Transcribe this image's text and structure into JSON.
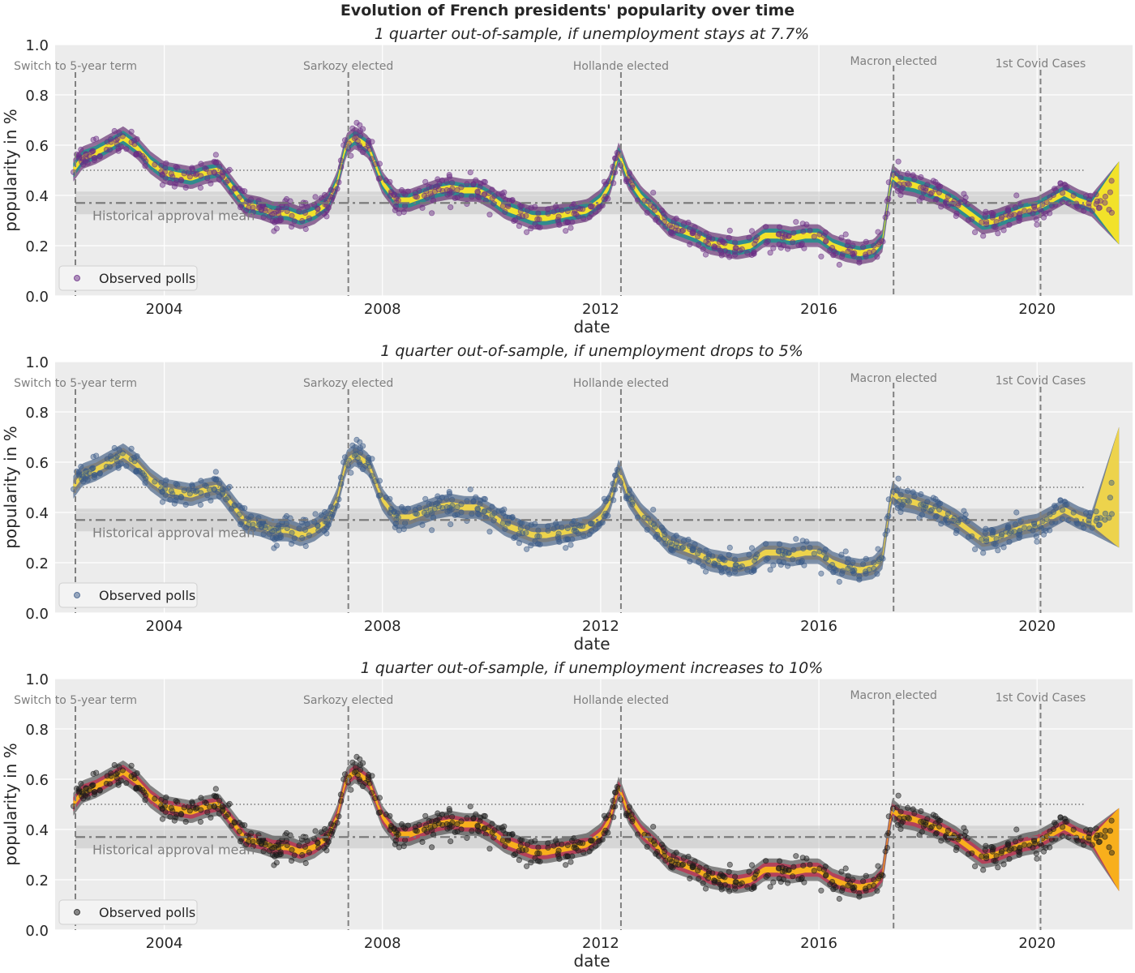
{
  "figure": {
    "suptitle": "Evolution of French presidents' popularity over time"
  },
  "chart_data": [
    {
      "type": "line",
      "title": "1 quarter out-of-sample, if unemployment stays at 7.7%",
      "xlabel": "date",
      "ylabel": "popularity in %",
      "xlim": [
        "2002-01-01",
        "2021-10-01"
      ],
      "ylim": [
        0,
        1
      ],
      "x_ticks": [
        "2004",
        "2008",
        "2012",
        "2016",
        "2020"
      ],
      "y_ticks": [
        "0.0",
        "0.2",
        "0.4",
        "0.6",
        "0.8",
        "1.0"
      ],
      "grid": true,
      "legend": {
        "position": "lower-left",
        "entries": [
          "Observed polls"
        ]
      },
      "colormap": "viridis",
      "poll_color": "#6a2c85",
      "band_outer_color": "#440154",
      "band_mid_color": "#21918c",
      "band_inner_color": "#fde725",
      "forecast_end": {
        "mean": 0.37,
        "low": 0.21,
        "high": 0.54
      },
      "annotations": [
        {
          "label": "Switch to 5-year term",
          "date": "2002-05-15"
        },
        {
          "label": "Sarkozy elected",
          "date": "2007-05-16"
        },
        {
          "label": "Hollande elected",
          "date": "2012-05-15"
        },
        {
          "label": "Macron elected",
          "date": "2017-05-14"
        },
        {
          "label": "1st Covid Cases",
          "date": "2020-01-24"
        }
      ],
      "reference_lines": {
        "fifty_percent": 0.5,
        "historical_mean": 0.37,
        "historical_band": [
          0.325,
          0.415
        ],
        "historical_label": "Historical approval mean"
      },
      "series": [
        {
          "x": [
            "2002-05",
            "2002-07",
            "2002-10",
            "2003-01",
            "2003-04",
            "2003-07",
            "2003-10",
            "2004-01",
            "2004-04",
            "2004-07",
            "2004-10",
            "2005-01",
            "2005-04",
            "2005-07",
            "2005-10",
            "2006-01",
            "2006-04",
            "2006-07",
            "2006-10",
            "2007-01",
            "2007-03",
            "2007-05",
            "2007-07",
            "2007-10",
            "2008-01",
            "2008-04",
            "2008-07",
            "2008-10",
            "2009-01",
            "2009-04",
            "2009-07",
            "2009-10",
            "2010-01",
            "2010-04",
            "2010-07",
            "2010-10",
            "2011-01",
            "2011-04",
            "2011-07",
            "2011-10",
            "2012-01",
            "2012-03",
            "2012-05",
            "2012-07",
            "2012-10",
            "2013-01",
            "2013-04",
            "2013-07",
            "2013-10",
            "2014-01",
            "2014-04",
            "2014-07",
            "2014-10",
            "2015-01",
            "2015-04",
            "2015-07",
            "2015-10",
            "2016-01",
            "2016-04",
            "2016-07",
            "2016-10",
            "2017-01",
            "2017-03",
            "2017-05",
            "2017-07",
            "2017-10",
            "2018-01",
            "2018-04",
            "2018-07",
            "2018-10",
            "2019-01",
            "2019-04",
            "2019-07",
            "2019-10",
            "2020-01",
            "2020-04",
            "2020-07",
            "2020-10",
            "2021-01",
            "2021-04",
            "2021-07"
          ],
          "y": [
            0.5,
            0.55,
            0.57,
            0.6,
            0.63,
            0.59,
            0.53,
            0.49,
            0.48,
            0.47,
            0.49,
            0.5,
            0.43,
            0.36,
            0.35,
            0.33,
            0.33,
            0.31,
            0.33,
            0.37,
            0.45,
            0.6,
            0.63,
            0.59,
            0.45,
            0.38,
            0.38,
            0.4,
            0.42,
            0.43,
            0.42,
            0.42,
            0.39,
            0.35,
            0.33,
            0.31,
            0.31,
            0.32,
            0.33,
            0.34,
            0.38,
            0.44,
            0.57,
            0.47,
            0.39,
            0.34,
            0.28,
            0.26,
            0.24,
            0.21,
            0.2,
            0.19,
            0.2,
            0.24,
            0.24,
            0.23,
            0.24,
            0.24,
            0.2,
            0.18,
            0.17,
            0.18,
            0.22,
            0.48,
            0.45,
            0.44,
            0.42,
            0.4,
            0.37,
            0.33,
            0.29,
            0.3,
            0.32,
            0.34,
            0.35,
            0.38,
            0.41,
            0.38,
            0.36,
            0.39,
            0.37
          ]
        }
      ]
    },
    {
      "type": "line",
      "title": "1 quarter out-of-sample, if unemployment drops to 5%",
      "xlabel": "date",
      "ylabel": "popularity in %",
      "xlim": [
        "2002-01-01",
        "2021-10-01"
      ],
      "ylim": [
        0,
        1
      ],
      "x_ticks": [
        "2004",
        "2008",
        "2012",
        "2016",
        "2020"
      ],
      "y_ticks": [
        "0.0",
        "0.2",
        "0.4",
        "0.6",
        "0.8",
        "1.0"
      ],
      "grid": true,
      "legend": {
        "position": "lower-left",
        "entries": [
          "Observed polls"
        ]
      },
      "colormap": "cividis",
      "poll_color": "#3a5a88",
      "band_outer_color": "#1d3f6e",
      "band_mid_color": "#7d7c78",
      "band_inner_color": "#f3d84a",
      "forecast_end": {
        "mean": 0.5,
        "low": 0.25,
        "high": 0.73
      },
      "annotations": [
        {
          "label": "Switch to 5-year term",
          "date": "2002-05-15"
        },
        {
          "label": "Sarkozy elected",
          "date": "2007-05-16"
        },
        {
          "label": "Hollande elected",
          "date": "2012-05-15"
        },
        {
          "label": "Macron elected",
          "date": "2017-05-14"
        },
        {
          "label": "1st Covid Cases",
          "date": "2020-01-24"
        }
      ],
      "reference_lines": {
        "fifty_percent": 0.5,
        "historical_mean": 0.37,
        "historical_band": [
          0.325,
          0.415
        ],
        "historical_label": "Historical approval mean"
      },
      "series": [
        {
          "x": [
            "2002-05",
            "2002-07",
            "2002-10",
            "2003-01",
            "2003-04",
            "2003-07",
            "2003-10",
            "2004-01",
            "2004-04",
            "2004-07",
            "2004-10",
            "2005-01",
            "2005-04",
            "2005-07",
            "2005-10",
            "2006-01",
            "2006-04",
            "2006-07",
            "2006-10",
            "2007-01",
            "2007-03",
            "2007-05",
            "2007-07",
            "2007-10",
            "2008-01",
            "2008-04",
            "2008-07",
            "2008-10",
            "2009-01",
            "2009-04",
            "2009-07",
            "2009-10",
            "2010-01",
            "2010-04",
            "2010-07",
            "2010-10",
            "2011-01",
            "2011-04",
            "2011-07",
            "2011-10",
            "2012-01",
            "2012-03",
            "2012-05",
            "2012-07",
            "2012-10",
            "2013-01",
            "2013-04",
            "2013-07",
            "2013-10",
            "2014-01",
            "2014-04",
            "2014-07",
            "2014-10",
            "2015-01",
            "2015-04",
            "2015-07",
            "2015-10",
            "2016-01",
            "2016-04",
            "2016-07",
            "2016-10",
            "2017-01",
            "2017-03",
            "2017-05",
            "2017-07",
            "2017-10",
            "2018-01",
            "2018-04",
            "2018-07",
            "2018-10",
            "2019-01",
            "2019-04",
            "2019-07",
            "2019-10",
            "2020-01",
            "2020-04",
            "2020-07",
            "2020-10",
            "2021-01",
            "2021-04",
            "2021-07"
          ],
          "y": [
            0.5,
            0.55,
            0.57,
            0.6,
            0.63,
            0.59,
            0.53,
            0.49,
            0.48,
            0.47,
            0.49,
            0.5,
            0.43,
            0.36,
            0.35,
            0.33,
            0.33,
            0.31,
            0.33,
            0.37,
            0.45,
            0.6,
            0.63,
            0.59,
            0.45,
            0.38,
            0.38,
            0.4,
            0.42,
            0.43,
            0.42,
            0.42,
            0.39,
            0.35,
            0.33,
            0.31,
            0.31,
            0.32,
            0.33,
            0.34,
            0.38,
            0.44,
            0.57,
            0.47,
            0.39,
            0.34,
            0.28,
            0.26,
            0.24,
            0.21,
            0.2,
            0.19,
            0.2,
            0.24,
            0.24,
            0.23,
            0.24,
            0.24,
            0.2,
            0.18,
            0.17,
            0.18,
            0.22,
            0.48,
            0.45,
            0.44,
            0.42,
            0.4,
            0.37,
            0.33,
            0.29,
            0.3,
            0.32,
            0.34,
            0.35,
            0.38,
            0.41,
            0.38,
            0.36,
            0.39,
            0.5
          ]
        }
      ]
    },
    {
      "type": "line",
      "title": "1 quarter out-of-sample, if unemployment increases to 10%",
      "xlabel": "date",
      "ylabel": "popularity in %",
      "xlim": [
        "2002-01-01",
        "2021-10-01"
      ],
      "ylim": [
        0,
        1
      ],
      "x_ticks": [
        "2004",
        "2008",
        "2012",
        "2016",
        "2020"
      ],
      "y_ticks": [
        "0.0",
        "0.2",
        "0.4",
        "0.6",
        "0.8",
        "1.0"
      ],
      "grid": true,
      "legend": {
        "position": "lower-left",
        "entries": [
          "Observed polls"
        ]
      },
      "colormap": "inferno",
      "poll_color": "#1a1a1a",
      "band_outer_color": "#2b2b2b",
      "band_mid_color": "#bc3754",
      "band_inner_color": "#fcb519",
      "forecast_end": {
        "mean": 0.32,
        "low": 0.17,
        "high": 0.5
      },
      "annotations": [
        {
          "label": "Switch to 5-year term",
          "date": "2002-05-15"
        },
        {
          "label": "Sarkozy elected",
          "date": "2007-05-16"
        },
        {
          "label": "Hollande elected",
          "date": "2012-05-15"
        },
        {
          "label": "Macron elected",
          "date": "2017-05-14"
        },
        {
          "label": "1st Covid Cases",
          "date": "2020-01-24"
        }
      ],
      "reference_lines": {
        "fifty_percent": 0.5,
        "historical_mean": 0.37,
        "historical_band": [
          0.325,
          0.415
        ],
        "historical_label": "Historical approval mean"
      },
      "series": [
        {
          "x": [
            "2002-05",
            "2002-07",
            "2002-10",
            "2003-01",
            "2003-04",
            "2003-07",
            "2003-10",
            "2004-01",
            "2004-04",
            "2004-07",
            "2004-10",
            "2005-01",
            "2005-04",
            "2005-07",
            "2005-10",
            "2006-01",
            "2006-04",
            "2006-07",
            "2006-10",
            "2007-01",
            "2007-03",
            "2007-05",
            "2007-07",
            "2007-10",
            "2008-01",
            "2008-04",
            "2008-07",
            "2008-10",
            "2009-01",
            "2009-04",
            "2009-07",
            "2009-10",
            "2010-01",
            "2010-04",
            "2010-07",
            "2010-10",
            "2011-01",
            "2011-04",
            "2011-07",
            "2011-10",
            "2012-01",
            "2012-03",
            "2012-05",
            "2012-07",
            "2012-10",
            "2013-01",
            "2013-04",
            "2013-07",
            "2013-10",
            "2014-01",
            "2014-04",
            "2014-07",
            "2014-10",
            "2015-01",
            "2015-04",
            "2015-07",
            "2015-10",
            "2016-01",
            "2016-04",
            "2016-07",
            "2016-10",
            "2017-01",
            "2017-03",
            "2017-05",
            "2017-07",
            "2017-10",
            "2018-01",
            "2018-04",
            "2018-07",
            "2018-10",
            "2019-01",
            "2019-04",
            "2019-07",
            "2019-10",
            "2020-01",
            "2020-04",
            "2020-07",
            "2020-10",
            "2021-01",
            "2021-04",
            "2021-07"
          ],
          "y": [
            0.5,
            0.55,
            0.57,
            0.6,
            0.63,
            0.59,
            0.53,
            0.49,
            0.48,
            0.47,
            0.49,
            0.5,
            0.43,
            0.36,
            0.35,
            0.33,
            0.33,
            0.31,
            0.33,
            0.37,
            0.45,
            0.6,
            0.63,
            0.59,
            0.45,
            0.38,
            0.38,
            0.4,
            0.42,
            0.43,
            0.42,
            0.42,
            0.39,
            0.35,
            0.33,
            0.31,
            0.31,
            0.32,
            0.33,
            0.34,
            0.38,
            0.44,
            0.57,
            0.47,
            0.39,
            0.34,
            0.28,
            0.26,
            0.24,
            0.21,
            0.2,
            0.19,
            0.2,
            0.24,
            0.24,
            0.23,
            0.24,
            0.24,
            0.2,
            0.18,
            0.17,
            0.18,
            0.22,
            0.48,
            0.45,
            0.44,
            0.42,
            0.4,
            0.37,
            0.33,
            0.29,
            0.3,
            0.32,
            0.34,
            0.35,
            0.38,
            0.41,
            0.38,
            0.36,
            0.39,
            0.32
          ]
        }
      ]
    }
  ]
}
